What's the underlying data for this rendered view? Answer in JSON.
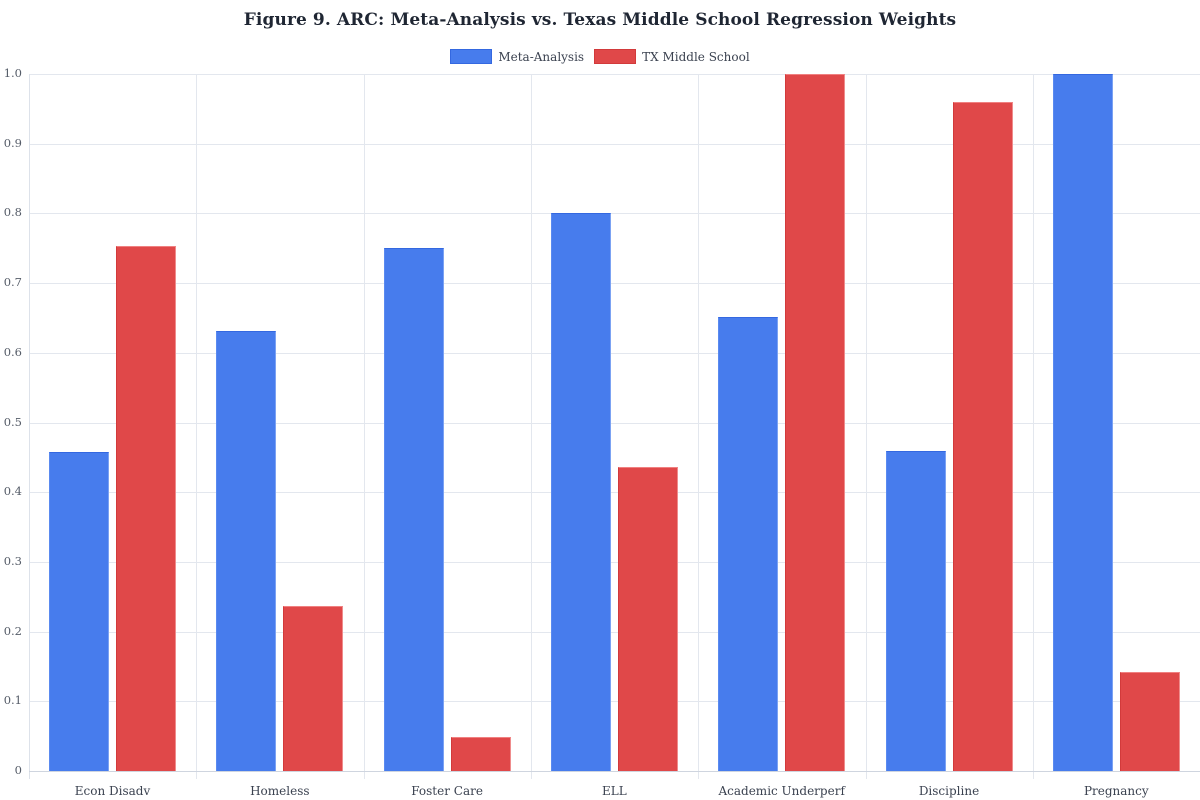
{
  "title": "Figure 9. ARC: Meta-Analysis vs. Texas Middle School Regression Weights",
  "legend": [
    {
      "label": "Meta-Analysis",
      "color": "#477ced"
    },
    {
      "label": "TX Middle School",
      "color": "#e04849"
    }
  ],
  "chart_data": {
    "type": "bar",
    "title": "Figure 9. ARC: Meta-Analysis vs. Texas Middle School Regression Weights",
    "xlabel": "",
    "ylabel": "",
    "categories": [
      "Econ Disadv",
      "Homeless",
      "Foster Care",
      "ELL",
      "Academic Underperf",
      "Discipline",
      "Pregnancy"
    ],
    "series": [
      {
        "name": "Meta-Analysis",
        "color": "#477ced",
        "values": [
          0.458,
          0.631,
          0.75,
          0.8,
          0.651,
          0.459,
          1.0
        ]
      },
      {
        "name": "TX Middle School",
        "color": "#e04849",
        "values": [
          0.753,
          0.237,
          0.049,
          0.436,
          1.0,
          0.96,
          0.142
        ]
      }
    ],
    "ylim": [
      0,
      1.0
    ],
    "yticks": [
      "0",
      "0.1",
      "0.2",
      "0.3",
      "0.4",
      "0.5",
      "0.6",
      "0.7",
      "0.8",
      "0.9",
      "1.0"
    ],
    "grid": true,
    "legend_position": "top-center"
  }
}
